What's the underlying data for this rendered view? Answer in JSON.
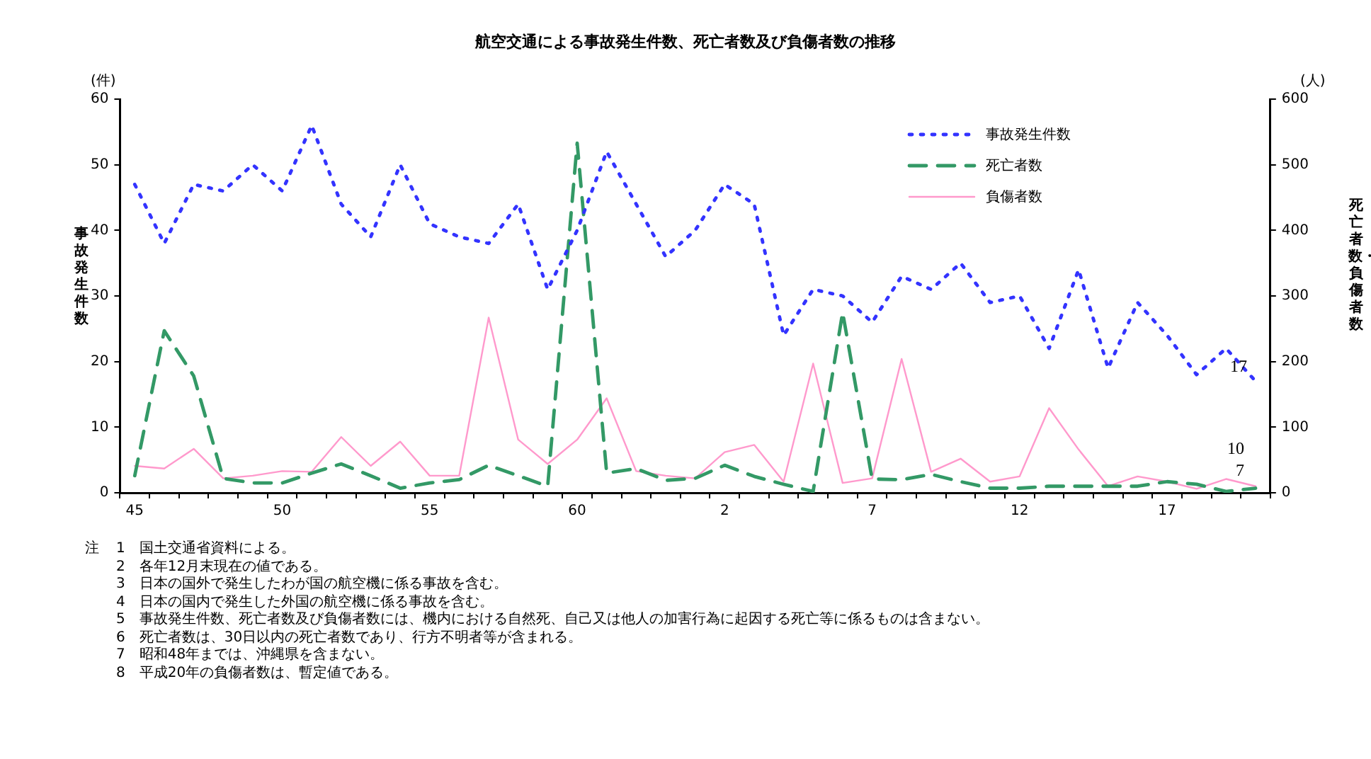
{
  "chart_data": {
    "type": "line",
    "title": "航空交通による事故発生件数、死亡者数及び負傷者数の推移",
    "ylabel": "事故発生件数",
    "y2label": "死亡者数・負傷者数",
    "categories": [
      "45",
      null,
      null,
      null,
      null,
      "50",
      null,
      null,
      null,
      null,
      "55",
      null,
      null,
      null,
      null,
      "60",
      null,
      null,
      null,
      null,
      "2",
      null,
      null,
      null,
      null,
      "7",
      null,
      null,
      null,
      null,
      "12",
      null,
      null,
      null,
      null,
      "17",
      null,
      null,
      null
    ],
    "series": [
      {
        "name": "事故発生件数",
        "color": "#3333ff",
        "line_style": "dotted",
        "values": [
          47,
          38,
          47,
          46,
          50,
          46,
          56,
          44,
          39,
          50,
          41,
          39,
          38,
          44,
          31,
          40,
          52,
          44,
          36,
          40,
          47,
          44,
          24,
          31,
          30,
          26,
          33,
          31,
          35,
          29,
          30,
          22,
          34,
          19,
          29,
          24,
          18,
          22,
          17
        ],
        "value_labels": [
          null,
          null,
          null,
          null,
          null,
          null,
          null,
          null,
          null,
          null,
          null,
          null,
          null,
          null,
          null,
          null,
          null,
          null,
          null,
          null,
          null,
          null,
          null,
          null,
          null,
          null,
          null,
          null,
          null,
          null,
          null,
          null,
          null,
          null,
          null,
          null,
          null,
          null,
          "17"
        ]
      },
      {
        "name": "死亡者数",
        "color": "#339966",
        "line_style": "dashed",
        "axis": "y2",
        "values": [
          26,
          247,
          178,
          22,
          15,
          15,
          30,
          44,
          26,
          7,
          15,
          20,
          42,
          26,
          10,
          533,
          30,
          37,
          19,
          22,
          42,
          25,
          13,
          2,
          275,
          21,
          20,
          28,
          17,
          7,
          7,
          10,
          10,
          10,
          10,
          17,
          13,
          2,
          7
        ],
        "value_labels": [
          null,
          null,
          null,
          null,
          null,
          null,
          null,
          null,
          null,
          null,
          null,
          null,
          null,
          null,
          null,
          null,
          null,
          null,
          null,
          null,
          null,
          null,
          null,
          null,
          null,
          null,
          null,
          null,
          null,
          null,
          null,
          null,
          null,
          null,
          null,
          null,
          null,
          null,
          "7"
        ]
      },
      {
        "name": "負傷者数",
        "color": "#ff99cc",
        "line_style": "solid",
        "axis": "y2",
        "values": [
          41,
          37,
          67,
          22,
          26,
          33,
          32,
          85,
          41,
          78,
          26,
          26,
          267,
          81,
          44,
          81,
          144,
          33,
          26,
          22,
          62,
          73,
          17,
          197,
          15,
          22,
          204,
          32,
          52,
          17,
          25,
          129,
          66,
          10,
          25,
          17,
          6,
          21,
          10
        ],
        "value_labels": [
          null,
          null,
          null,
          null,
          null,
          null,
          null,
          null,
          null,
          null,
          null,
          null,
          null,
          null,
          null,
          null,
          null,
          null,
          null,
          null,
          null,
          null,
          null,
          null,
          null,
          null,
          null,
          null,
          null,
          null,
          null,
          null,
          null,
          null,
          null,
          null,
          null,
          null,
          "10"
        ]
      }
    ],
    "ylim": [
      0,
      60
    ],
    "yticks": [
      0,
      10,
      20,
      30,
      40,
      50,
      60
    ],
    "y2lim": [
      0,
      600
    ],
    "y2ticks": [
      0,
      100,
      200,
      300,
      400,
      500,
      600
    ],
    "grid": false,
    "legend": "top right",
    "marker": "none",
    "annotations": [
      "(件)",
      "(人)",
      "注",
      "1　国土交通省資料による。",
      "2　各年12月末現在の値である。",
      "3　日本の国外で発生したわが国の航空機に係る事故を含む。",
      "4　日本の国内で発生した外国の航空機に係る事故を含む。",
      "5　事故発生件数、死亡者数及び負傷者数には、機内における自然死、自己又は他人の加害行為に起因する死亡等に係るものは含まない。",
      "6　死亡者数は、30日以内の死亡者数であり、行方不明者等が含まれる。",
      "7　昭和48年までは、沖縄県を含まない。",
      "8　平成20年の負傷者数は、暫定値である。"
    ]
  }
}
